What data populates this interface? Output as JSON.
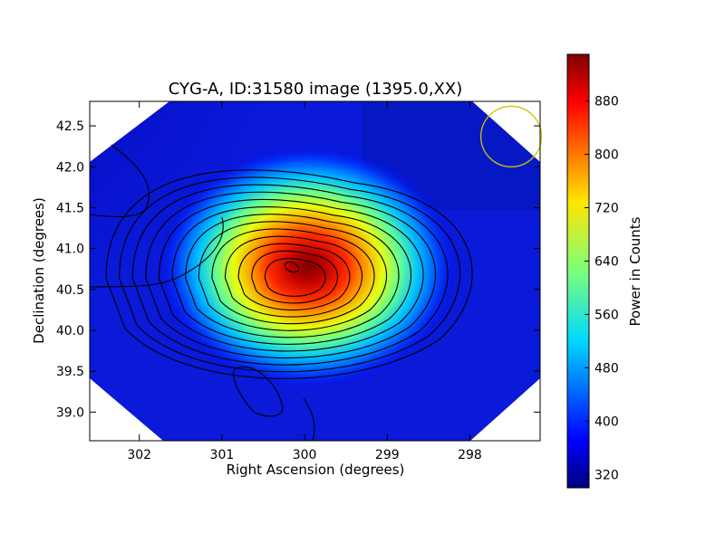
{
  "chart_data": {
    "type": "heatmap",
    "title": "CYG-A, ID:31580 image (1395.0,XX)",
    "xlabel": "Right Ascension (degrees)",
    "ylabel": "Declination (degrees)",
    "xlim": [
      302.6,
      297.15
    ],
    "ylim": [
      38.65,
      42.8
    ],
    "x_ticks": [
      302,
      301,
      300,
      299,
      298
    ],
    "x_tick_labels": [
      "302",
      "301",
      "300",
      "299",
      "298"
    ],
    "y_ticks": [
      39.0,
      39.5,
      40.0,
      40.5,
      41.0,
      41.5,
      42.0,
      42.5
    ],
    "y_tick_labels": [
      "39.0",
      "39.5",
      "40.0",
      "40.5",
      "41.0",
      "41.5",
      "42.0",
      "42.5"
    ],
    "colorbar": {
      "label": "Power in Counts",
      "vmin": 300,
      "vmax": 950,
      "ticks": [
        320,
        400,
        480,
        560,
        640,
        720,
        800,
        880
      ],
      "tick_labels": [
        "320",
        "400",
        "480",
        "560",
        "640",
        "720",
        "800",
        "880"
      ],
      "colormap": "jet"
    },
    "peak": {
      "ra": 300.1,
      "dec": 40.75,
      "value": 935
    },
    "background_level": 390,
    "contour_levels": [
      340,
      400,
      440,
      480,
      520,
      560,
      600,
      640,
      680,
      720,
      760,
      800,
      840,
      900
    ],
    "beam_marker": {
      "ra": 297.5,
      "dec": 42.37,
      "radius_deg": 0.37,
      "color": "#c8c800"
    },
    "grid": false,
    "legend": "none"
  }
}
